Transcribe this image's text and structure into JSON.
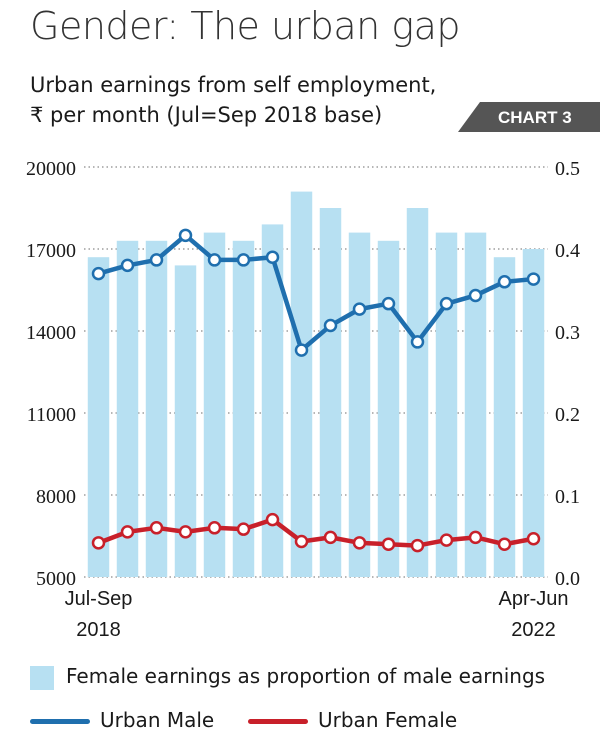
{
  "header": {
    "title": "Gender: The urban gap",
    "subtitle_line1": "Urban earnings from self employment,",
    "subtitle_line2": "₹ per month (Jul=Sep 2018 base)",
    "badge": "CHART 3"
  },
  "colors": {
    "bar": "#b7e0f2",
    "male": "#1f6fae",
    "female": "#c8202a",
    "badge": "#555555",
    "grid": "#8a8a8a"
  },
  "chart_data": {
    "type": "bar+line",
    "periods": 16,
    "x_tick_labels": [
      {
        "index": 0,
        "line1": "Jul-Sep",
        "line2": "2018"
      },
      {
        "index": 15,
        "line1": "Apr-Jun",
        "line2": "2022"
      }
    ],
    "y_left": {
      "min": 5000,
      "max": 20000,
      "ticks": [
        "20000",
        "17000",
        "14000",
        "11000",
        "8000",
        "5000"
      ],
      "tick_values": [
        20000,
        17000,
        14000,
        11000,
        8000,
        5000
      ]
    },
    "y_right": {
      "min": 0.0,
      "max": 0.5,
      "ticks": [
        "0.5",
        "0.4",
        "0.3",
        "0.2",
        "0.1",
        "0.0"
      ],
      "tick_values": [
        0.5,
        0.4,
        0.3,
        0.2,
        0.1,
        0.0
      ]
    },
    "grid": "horizontal dotted",
    "series": [
      {
        "name": "Female earnings as proportion of male earnings",
        "kind": "bar",
        "axis": "right",
        "values": [
          0.39,
          0.41,
          0.41,
          0.38,
          0.42,
          0.41,
          0.43,
          0.47,
          0.45,
          0.42,
          0.41,
          0.45,
          0.42,
          0.42,
          0.39,
          0.4
        ]
      },
      {
        "name": "Urban Male",
        "kind": "line",
        "axis": "left",
        "values": [
          16100,
          16400,
          16600,
          17500,
          16600,
          16600,
          16700,
          13300,
          14200,
          14800,
          15000,
          13600,
          15000,
          15300,
          15800,
          15900
        ]
      },
      {
        "name": "Urban Female",
        "kind": "line",
        "axis": "left",
        "values": [
          6250,
          6650,
          6800,
          6650,
          6800,
          6750,
          7100,
          6300,
          6450,
          6250,
          6200,
          6150,
          6350,
          6450,
          6200,
          6400
        ]
      }
    ]
  },
  "legend": {
    "bar_label": "Female earnings as proportion of male earnings",
    "male_label": "Urban Male",
    "female_label": "Urban Female"
  }
}
